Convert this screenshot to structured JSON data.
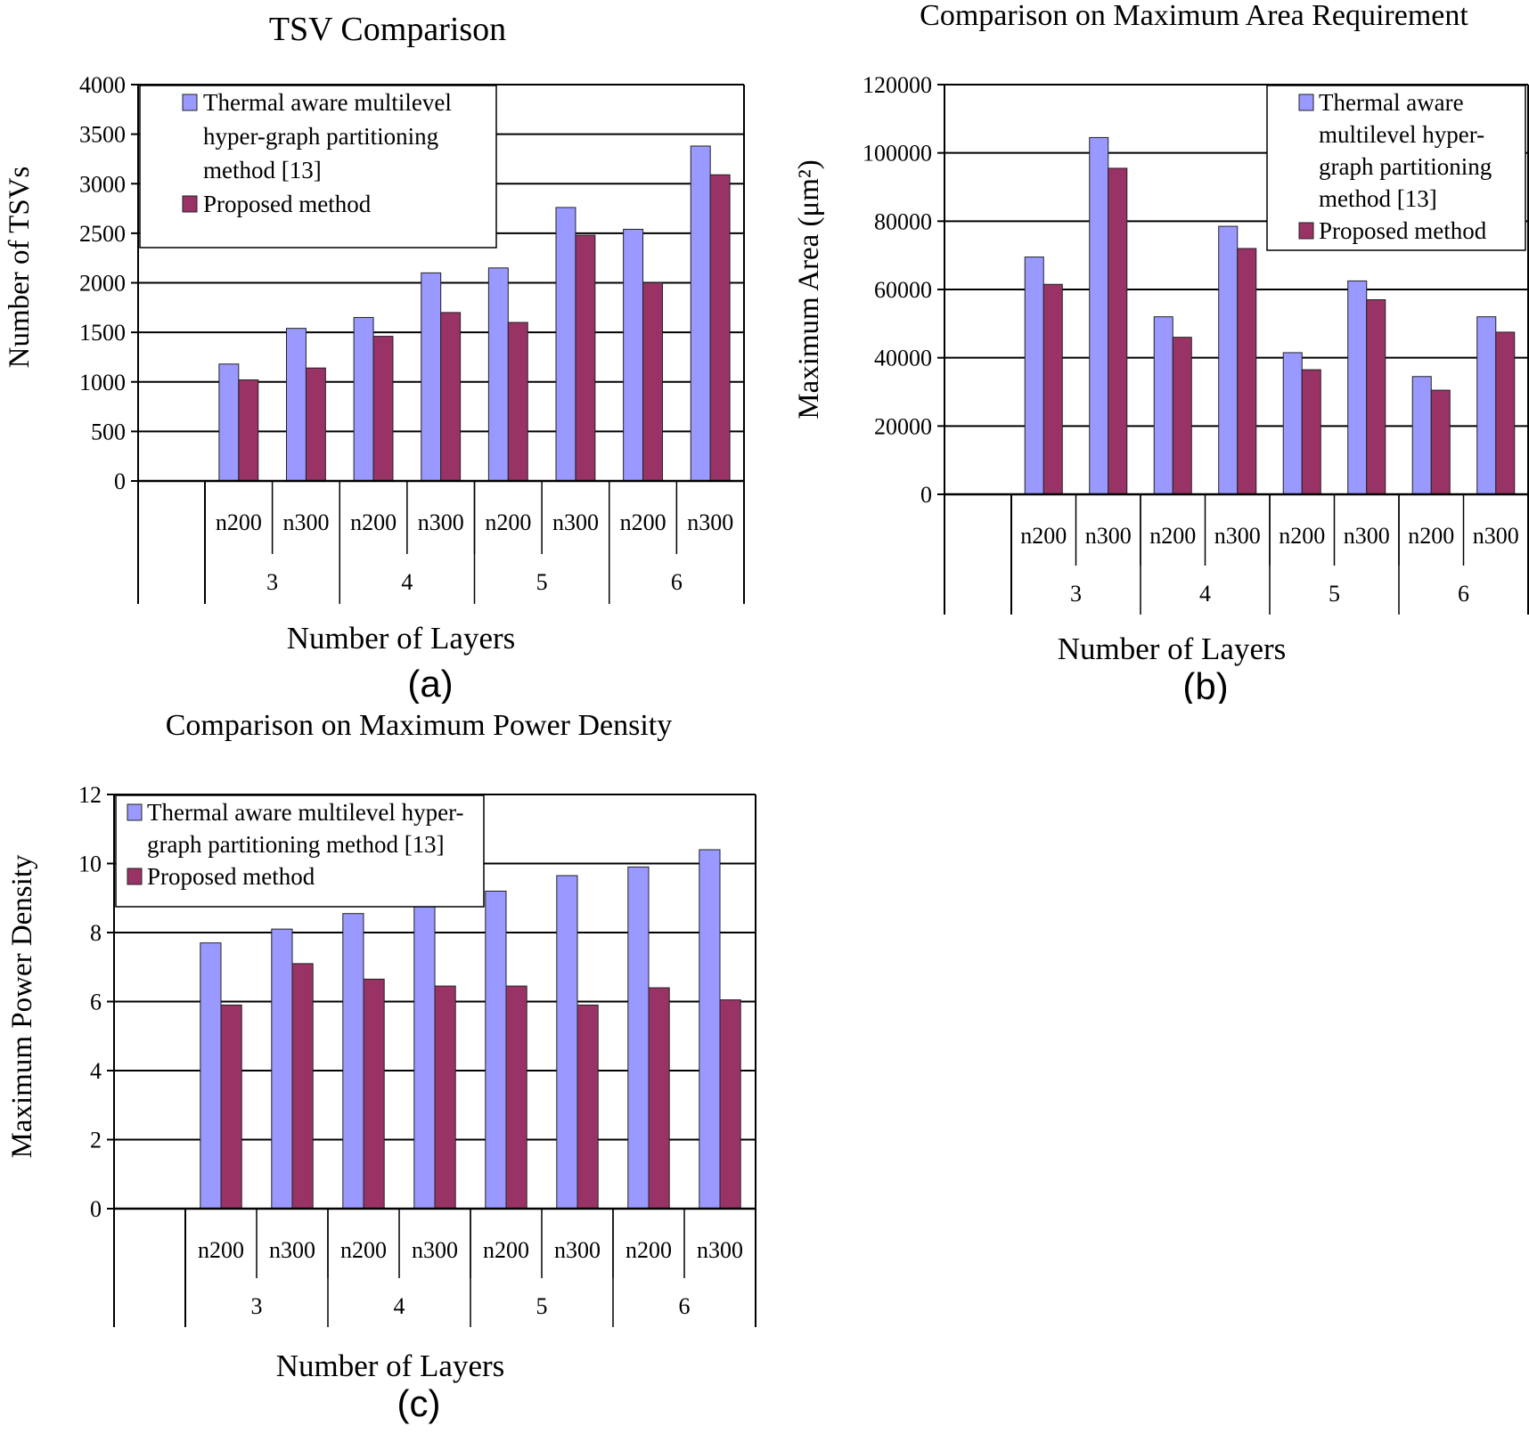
{
  "colors": {
    "series1": "#9999ff",
    "series2": "#993366",
    "grid": "#000000"
  },
  "chart_data": [
    {
      "type": "bar",
      "panel_label": "(a)",
      "title": "TSV Comparison",
      "xlabel": "Number of Layers",
      "ylabel": "Number of TSVs",
      "ylim": [
        0,
        4000
      ],
      "yticks": [
        "4000",
        "3500",
        "3000",
        "2500",
        "2000",
        "1500",
        "1000",
        "500",
        "0"
      ],
      "groups": [
        "3",
        "4",
        "5",
        "6"
      ],
      "categories": [
        "n200",
        "n300",
        "n200",
        "n300",
        "n200",
        "n300",
        "n200",
        "n300"
      ],
      "legend": [
        "Thermal aware multilevel",
        "hyper-graph partitioning",
        "method [13]",
        "Proposed method"
      ],
      "legend_position": "top-left",
      "grid": true,
      "series": [
        {
          "name": "Thermal aware multilevel hyper-graph partitioning method [13]",
          "values": [
            1180,
            1540,
            1650,
            2100,
            2150,
            2760,
            2540,
            3380
          ]
        },
        {
          "name": "Proposed method",
          "values": [
            1020,
            1140,
            1460,
            1700,
            1600,
            2480,
            2000,
            3090
          ]
        }
      ]
    },
    {
      "type": "bar",
      "panel_label": "(b)",
      "title": "Comparison on Maximum Area Requirement",
      "xlabel": "Number of Layers",
      "ylabel": "Maximum Area (μm²)",
      "ylim": [
        0,
        120000
      ],
      "yticks": [
        "120000",
        "100000",
        "80000",
        "60000",
        "40000",
        "20000",
        "0"
      ],
      "groups": [
        "3",
        "4",
        "5",
        "6"
      ],
      "categories": [
        "n200",
        "n300",
        "n200",
        "n300",
        "n200",
        "n300",
        "n200",
        "n300"
      ],
      "legend": [
        "Thermal aware",
        "multilevel hyper-",
        "graph partitioning",
        "method [13]",
        "Proposed method"
      ],
      "legend_position": "top-right",
      "grid": true,
      "series": [
        {
          "name": "Thermal aware multilevel hyper-graph partitioning method [13]",
          "values": [
            69500,
            104500,
            52000,
            78500,
            41500,
            62500,
            34500,
            52000
          ]
        },
        {
          "name": "Proposed method",
          "values": [
            61500,
            95500,
            46000,
            72000,
            36500,
            57000,
            30500,
            47500
          ]
        }
      ]
    },
    {
      "type": "bar",
      "panel_label": "(c)",
      "title": "Comparison on Maximum Power Density",
      "xlabel": "Number of Layers",
      "ylabel": "Maximum Power Density",
      "ylim": [
        0,
        12
      ],
      "yticks": [
        "12",
        "10",
        "8",
        "6",
        "4",
        "2",
        "0"
      ],
      "groups": [
        "3",
        "4",
        "5",
        "6"
      ],
      "categories": [
        "n200",
        "n300",
        "n200",
        "n300",
        "n200",
        "n300",
        "n200",
        "n300"
      ],
      "legend": [
        "Thermal aware multilevel hyper-",
        "graph partitioning method [13]",
        "Proposed method"
      ],
      "legend_position": "top-left",
      "grid": true,
      "series": [
        {
          "name": "Thermal aware multilevel hyper-graph partitioning method [13]",
          "values": [
            7.7,
            8.1,
            8.55,
            8.9,
            9.2,
            9.65,
            9.9,
            10.4
          ]
        },
        {
          "name": "Proposed method",
          "values": [
            5.9,
            7.1,
            6.65,
            6.45,
            6.45,
            5.9,
            6.4,
            6.05
          ]
        }
      ]
    }
  ]
}
